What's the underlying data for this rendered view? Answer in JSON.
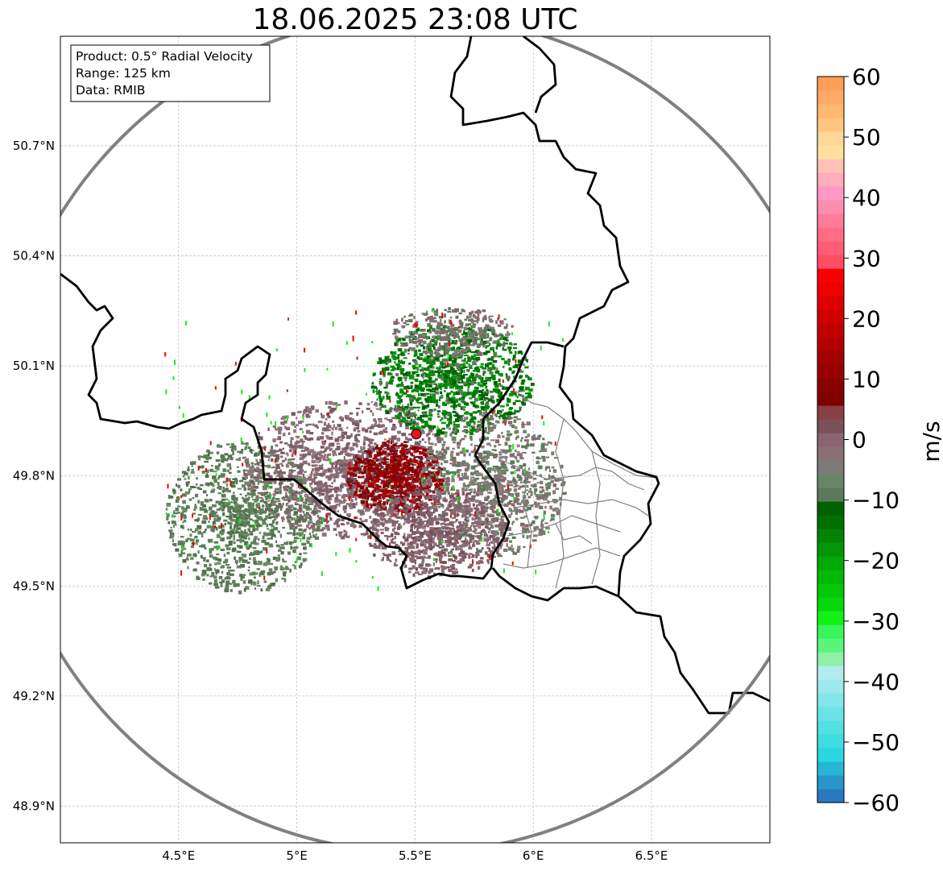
{
  "title": "18.06.2025 23:08 UTC",
  "info_box": {
    "product": "Product: 0.5° Radial Velocity",
    "range": "Range: 125 km",
    "data": "Data: RMIB"
  },
  "map": {
    "lon_range": [
      4.0,
      7.0
    ],
    "lat_range": [
      48.8,
      51.0
    ],
    "lon_ticks": [
      {
        "value": 4.5,
        "label": "4.5°E"
      },
      {
        "value": 5.0,
        "label": "5°E"
      },
      {
        "value": 5.5,
        "label": "5.5°E"
      },
      {
        "value": 6.0,
        "label": "6°E"
      },
      {
        "value": 6.5,
        "label": "6.5°E"
      }
    ],
    "lat_ticks": [
      {
        "value": 50.7,
        "label": "50.7°N"
      },
      {
        "value": 50.4,
        "label": "50.4°N"
      },
      {
        "value": 50.1,
        "label": "50.1°N"
      },
      {
        "value": 49.8,
        "label": "49.8°N"
      },
      {
        "value": 49.5,
        "label": "49.5°N"
      },
      {
        "value": 49.2,
        "label": "49.2°N"
      },
      {
        "value": 48.9,
        "label": "48.9°N"
      }
    ],
    "radar_site": {
      "lon": 5.505,
      "lat": 49.914,
      "color": "#e8141e"
    },
    "range_ring_color": "#808080",
    "border_color": "#000000",
    "gridlines": true
  },
  "colorbar": {
    "label": "m/s",
    "min": -60,
    "max": 60,
    "ticks": [
      {
        "value": 60,
        "label": "60"
      },
      {
        "value": 50,
        "label": "50"
      },
      {
        "value": 40,
        "label": "40"
      },
      {
        "value": 30,
        "label": "30"
      },
      {
        "value": 20,
        "label": "20"
      },
      {
        "value": 10,
        "label": "10"
      },
      {
        "value": 0,
        "label": "0"
      },
      {
        "value": -10,
        "label": "−10"
      },
      {
        "value": -20,
        "label": "−20"
      },
      {
        "value": -30,
        "label": "−30"
      },
      {
        "value": -40,
        "label": "−40"
      },
      {
        "value": -50,
        "label": "−50"
      },
      {
        "value": -60,
        "label": "−60"
      }
    ],
    "colors_bottom_to_top": [
      "#2979c0",
      "#2a95c9",
      "#27b6d4",
      "#2ad6df",
      "#3ddde2",
      "#52e0e3",
      "#6be3e6",
      "#83e6e9",
      "#9be9ec",
      "#b3ecef",
      "#8ff0a6",
      "#5af57a",
      "#38f55c",
      "#12f017",
      "#06d80b",
      "#04c808",
      "#03b806",
      "#02a805",
      "#029604",
      "#028304",
      "#016f02",
      "#016101",
      "#5c7a5a",
      "#6a8466",
      "#7e7a76",
      "#8a7076",
      "#886570",
      "#7c5058",
      "#883f45",
      "#800000",
      "#880000",
      "#960000",
      "#a30000",
      "#b20000",
      "#c00000",
      "#cf0000",
      "#de0000",
      "#ee0000",
      "#fa0000",
      "#ff4d62",
      "#ff5d74",
      "#ff6c86",
      "#ff7c98",
      "#ff8db0",
      "#ff98c4",
      "#ffacbc",
      "#ffc2b4",
      "#ffe09e",
      "#ffd899",
      "#ffc680",
      "#ffb870",
      "#ffaa66",
      "#ff9e55"
    ]
  }
}
